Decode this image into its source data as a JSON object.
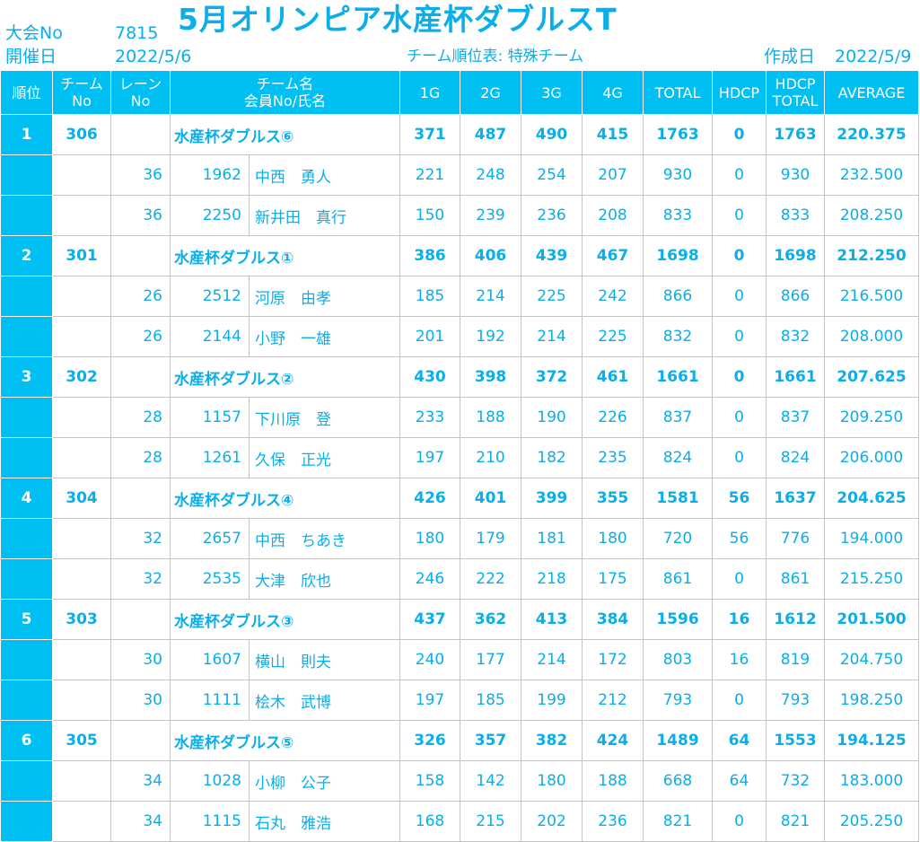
{
  "header": {
    "event_no_label": "大会No",
    "event_no": "7815",
    "date_label": "開催日",
    "date": "2022/5/6",
    "title": "5月オリンピア水産杯ダブルスT",
    "subtitle": "チーム順位表: 特殊チーム",
    "created_label": "作成日",
    "created_date": "2022/5/9"
  },
  "columns": {
    "rank": "順位",
    "team_no_1": "チーム",
    "team_no_2": "No",
    "lane_no_1": "レーン",
    "lane_no_2": "No",
    "team_name_1": "チーム名",
    "team_name_2": "会員No/氏名",
    "g1": "1G",
    "g2": "2G",
    "g3": "3G",
    "g4": "4G",
    "total": "TOTAL",
    "hdcp": "HDCP",
    "hdcp_total_1": "HDCP",
    "hdcp_total_2": "TOTAL",
    "average": "AVERAGE"
  },
  "teams": [
    {
      "rank": "1",
      "team_no": "306",
      "name": "水産杯ダブルス⑥",
      "g1": "371",
      "g2": "487",
      "g3": "490",
      "g4": "415",
      "total": "1763",
      "hdcp": "0",
      "hdcp_total": "1763",
      "average": "220.375",
      "members": [
        {
          "lane": "36",
          "member_no": "1962",
          "name": "中西　勇人",
          "g1": "221",
          "g2": "248",
          "g3": "254",
          "g4": "207",
          "total": "930",
          "hdcp": "0",
          "hdcp_total": "930",
          "average": "232.500"
        },
        {
          "lane": "36",
          "member_no": "2250",
          "name": "新井田　真行",
          "g1": "150",
          "g2": "239",
          "g3": "236",
          "g4": "208",
          "total": "833",
          "hdcp": "0",
          "hdcp_total": "833",
          "average": "208.250"
        }
      ]
    },
    {
      "rank": "2",
      "team_no": "301",
      "name": "水産杯ダブルス①",
      "g1": "386",
      "g2": "406",
      "g3": "439",
      "g4": "467",
      "total": "1698",
      "hdcp": "0",
      "hdcp_total": "1698",
      "average": "212.250",
      "members": [
        {
          "lane": "26",
          "member_no": "2512",
          "name": "河原　由孝",
          "g1": "185",
          "g2": "214",
          "g3": "225",
          "g4": "242",
          "total": "866",
          "hdcp": "0",
          "hdcp_total": "866",
          "average": "216.500"
        },
        {
          "lane": "26",
          "member_no": "2144",
          "name": "小野　一雄",
          "g1": "201",
          "g2": "192",
          "g3": "214",
          "g4": "225",
          "total": "832",
          "hdcp": "0",
          "hdcp_total": "832",
          "average": "208.000"
        }
      ]
    },
    {
      "rank": "3",
      "team_no": "302",
      "name": "水産杯ダブルス②",
      "g1": "430",
      "g2": "398",
      "g3": "372",
      "g4": "461",
      "total": "1661",
      "hdcp": "0",
      "hdcp_total": "1661",
      "average": "207.625",
      "members": [
        {
          "lane": "28",
          "member_no": "1157",
          "name": "下川原　登",
          "g1": "233",
          "g2": "188",
          "g3": "190",
          "g4": "226",
          "total": "837",
          "hdcp": "0",
          "hdcp_total": "837",
          "average": "209.250"
        },
        {
          "lane": "28",
          "member_no": "1261",
          "name": "久保　正光",
          "g1": "197",
          "g2": "210",
          "g3": "182",
          "g4": "235",
          "total": "824",
          "hdcp": "0",
          "hdcp_total": "824",
          "average": "206.000"
        }
      ]
    },
    {
      "rank": "4",
      "team_no": "304",
      "name": "水産杯ダブルス④",
      "g1": "426",
      "g2": "401",
      "g3": "399",
      "g4": "355",
      "total": "1581",
      "hdcp": "56",
      "hdcp_total": "1637",
      "average": "204.625",
      "members": [
        {
          "lane": "32",
          "member_no": "2657",
          "name": "中西　ちあき",
          "g1": "180",
          "g2": "179",
          "g3": "181",
          "g4": "180",
          "total": "720",
          "hdcp": "56",
          "hdcp_total": "776",
          "average": "194.000"
        },
        {
          "lane": "32",
          "member_no": "2535",
          "name": "大津　欣也",
          "g1": "246",
          "g2": "222",
          "g3": "218",
          "g4": "175",
          "total": "861",
          "hdcp": "0",
          "hdcp_total": "861",
          "average": "215.250"
        }
      ]
    },
    {
      "rank": "5",
      "team_no": "303",
      "name": "水産杯ダブルス③",
      "g1": "437",
      "g2": "362",
      "g3": "413",
      "g4": "384",
      "total": "1596",
      "hdcp": "16",
      "hdcp_total": "1612",
      "average": "201.500",
      "members": [
        {
          "lane": "30",
          "member_no": "1607",
          "name": "横山　則夫",
          "g1": "240",
          "g2": "177",
          "g3": "214",
          "g4": "172",
          "total": "803",
          "hdcp": "16",
          "hdcp_total": "819",
          "average": "204.750"
        },
        {
          "lane": "30",
          "member_no": "1111",
          "name": "桧木　武博",
          "g1": "197",
          "g2": "185",
          "g3": "199",
          "g4": "212",
          "total": "793",
          "hdcp": "0",
          "hdcp_total": "793",
          "average": "198.250"
        }
      ]
    },
    {
      "rank": "6",
      "team_no": "305",
      "name": "水産杯ダブルス⑤",
      "g1": "326",
      "g2": "357",
      "g3": "382",
      "g4": "424",
      "total": "1489",
      "hdcp": "64",
      "hdcp_total": "1553",
      "average": "194.125",
      "members": [
        {
          "lane": "34",
          "member_no": "1028",
          "name": "小柳　公子",
          "g1": "158",
          "g2": "142",
          "g3": "180",
          "g4": "188",
          "total": "668",
          "hdcp": "64",
          "hdcp_total": "732",
          "average": "183.000"
        },
        {
          "lane": "34",
          "member_no": "1115",
          "name": "石丸　雅浩",
          "g1": "168",
          "g2": "215",
          "g3": "202",
          "g4": "236",
          "total": "821",
          "hdcp": "0",
          "hdcp_total": "821",
          "average": "205.250"
        }
      ]
    }
  ]
}
